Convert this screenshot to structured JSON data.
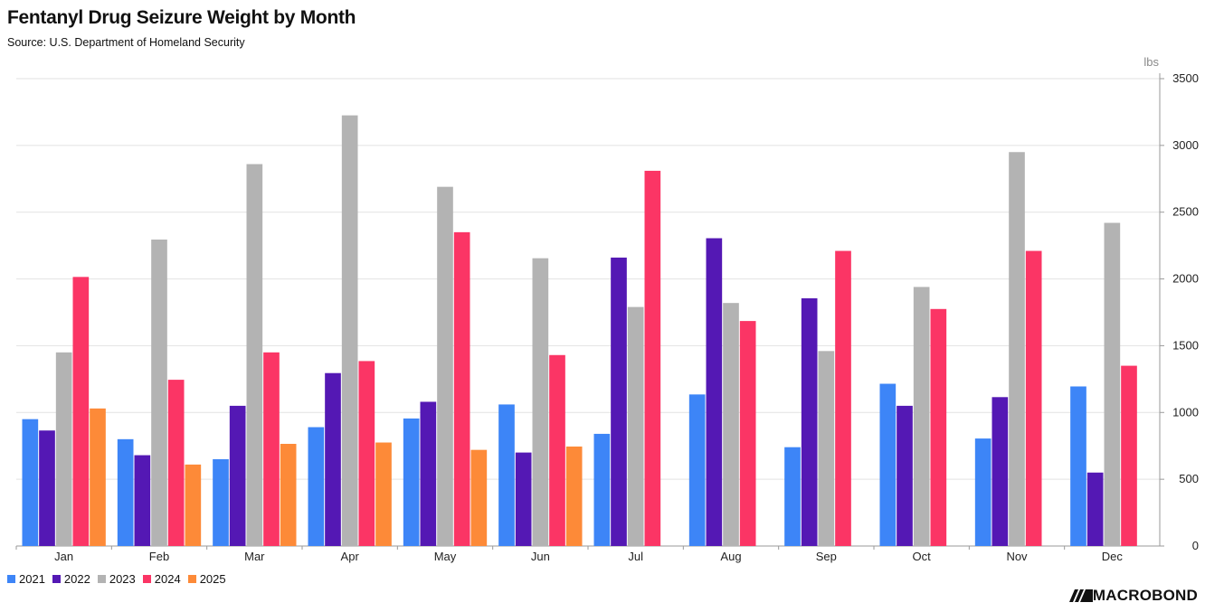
{
  "title": "Fentanyl Drug Seizure Weight by Month",
  "subtitle": "Source: U.S. Department of Homeland Security",
  "brand": "MACROBOND",
  "chart_data": {
    "type": "bar",
    "title": "Fentanyl Drug Seizure Weight by Month",
    "subtitle": "Source: U.S. Department of Homeland Security",
    "unit": "lbs",
    "categories": [
      "Jan",
      "Feb",
      "Mar",
      "Apr",
      "May",
      "Jun",
      "Jul",
      "Aug",
      "Sep",
      "Oct",
      "Nov",
      "Dec"
    ],
    "ylim": [
      0,
      3500
    ],
    "yticks": [
      0,
      500,
      1000,
      1500,
      2000,
      2500,
      3000,
      3500
    ],
    "y_axis_side": "right",
    "grid": true,
    "legend_position": "bottom-left",
    "series": [
      {
        "name": "2021",
        "color": "#3d85f7",
        "values": [
          950,
          800,
          650,
          890,
          955,
          1060,
          840,
          1135,
          740,
          1215,
          805,
          1195
        ]
      },
      {
        "name": "2022",
        "color": "#5418b4",
        "values": [
          865,
          680,
          1050,
          1295,
          1080,
          700,
          2160,
          2305,
          1855,
          1050,
          1115,
          550
        ]
      },
      {
        "name": "2023",
        "color": "#b3b3b3",
        "values": [
          1450,
          2295,
          2860,
          3225,
          2690,
          2155,
          1790,
          1820,
          1460,
          1940,
          2950,
          2420
        ]
      },
      {
        "name": "2024",
        "color": "#fb3565",
        "values": [
          2015,
          1245,
          1450,
          1385,
          2350,
          1430,
          2810,
          1685,
          2210,
          1775,
          2210,
          1350
        ]
      },
      {
        "name": "2025",
        "color": "#fd8a38",
        "values": [
          1030,
          610,
          765,
          775,
          720,
          745,
          null,
          null,
          null,
          null,
          null,
          null
        ]
      }
    ]
  }
}
